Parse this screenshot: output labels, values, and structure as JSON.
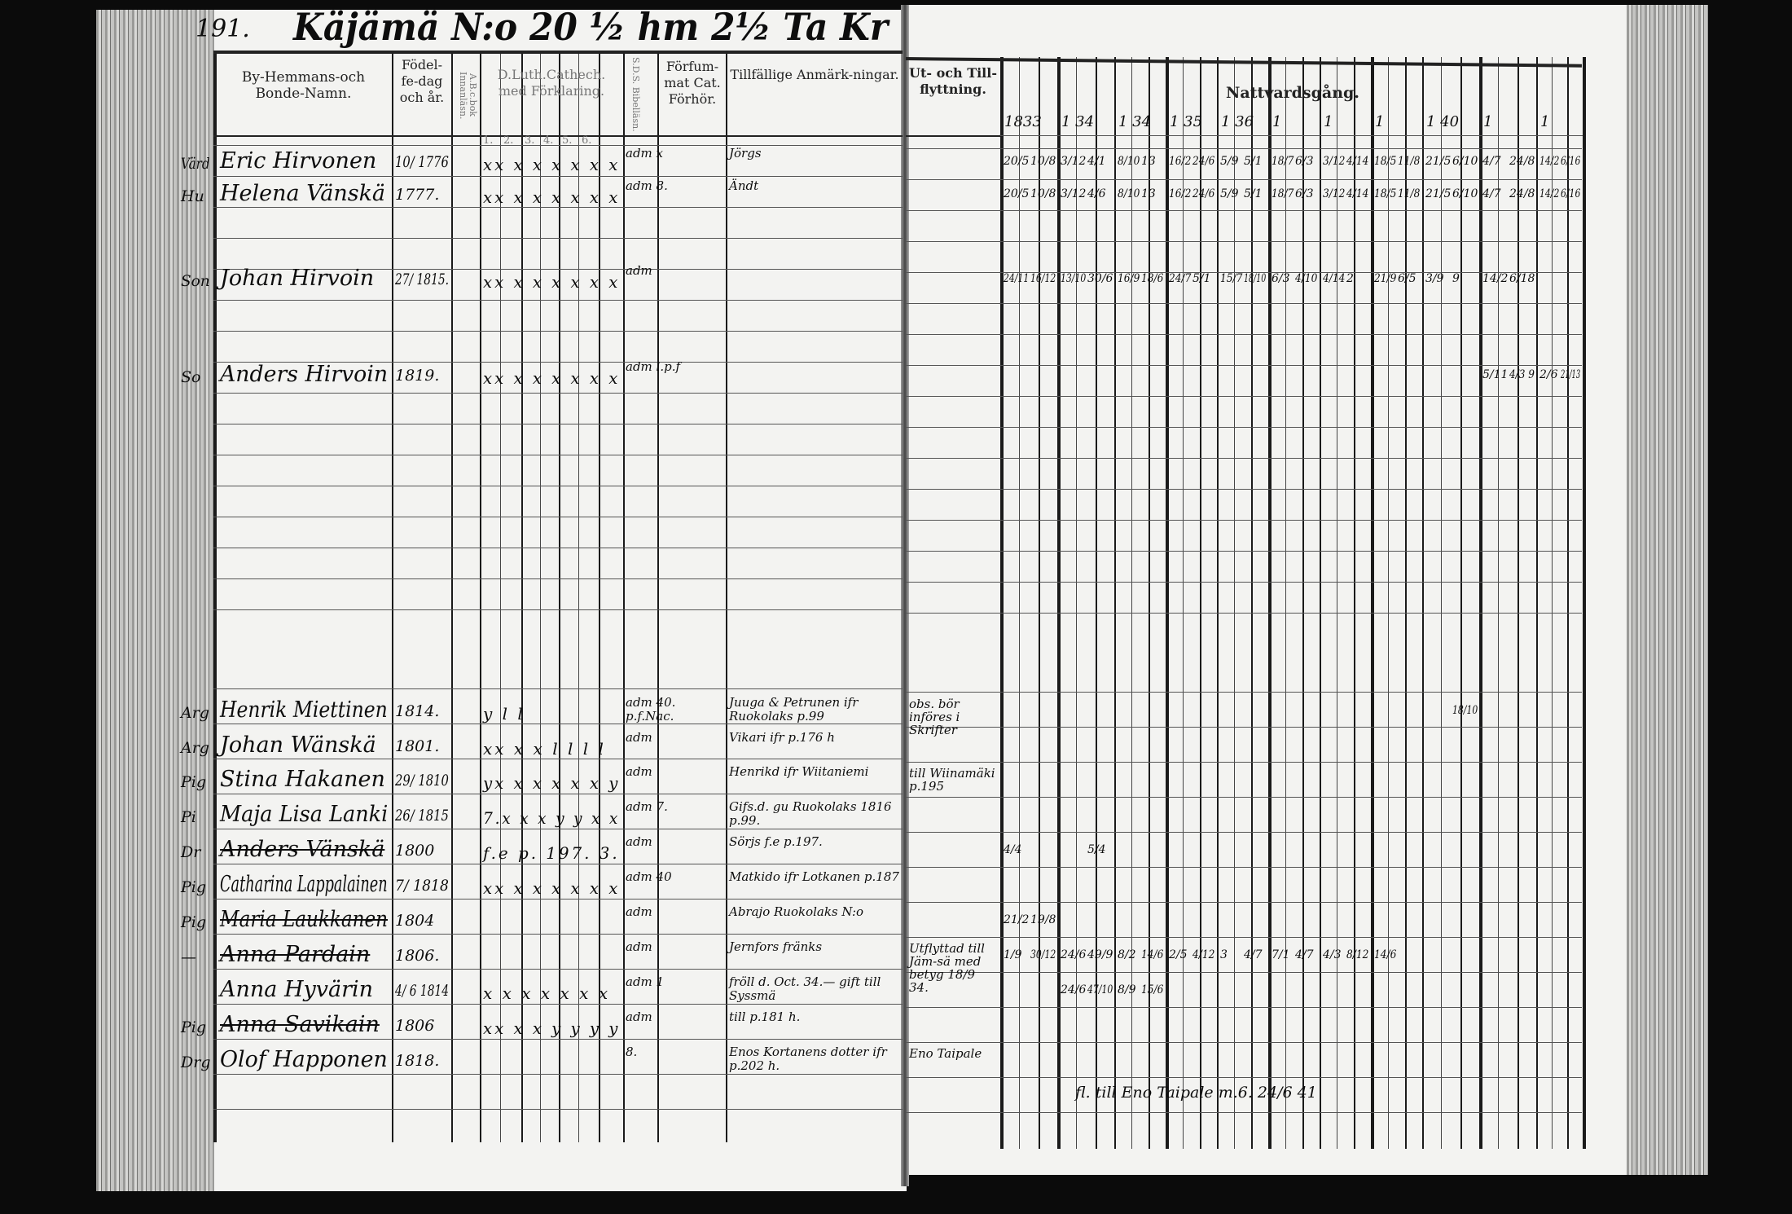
{
  "left_page": {
    "page_number": "191.",
    "title": "Käjämä N:o 20 ½ hm 2½ Ta Kr",
    "columns": {
      "name": "By-Hemmans-och Bonde-Namn.",
      "birth": "Födel-fe-dag och år.",
      "abc": "A.B.c.bok Innanläsn.",
      "catechism": "D.Luth.Cathech. med Förklaring.",
      "catechism_sub": [
        "1.",
        "2.",
        "3.",
        "4.",
        "5.",
        "6."
      ],
      "sds": "S.D.S. Bibelläsn.",
      "missed": "Förfum-mat Cat. Förhör.",
      "remarks": "Tillfällige Anmärk-ningar."
    },
    "entries": [
      {
        "role": "Värd",
        "name": "Eric Hirvonen",
        "birth": "10/ 1776",
        "marks": "xx x x x x x x",
        "sds": "adm x",
        "remarks": "Jörgs"
      },
      {
        "role": "Hu",
        "name": "Helena Vänskä",
        "birth": "1777.",
        "marks": "xx x x x x x x",
        "sds": "adm 8.",
        "remarks": "Ändt"
      },
      {
        "role": "Son",
        "name": "Johan Hirvoin",
        "birth": "27/ 1815.",
        "marks": "xx x x x x x x",
        "sds": "adm",
        "remarks": ""
      },
      {
        "role": "So",
        "name": "Anders Hirvoin",
        "birth": "1819.",
        "marks": "xx x x x x x x",
        "sds": "adm l.p.f",
        "remarks": ""
      },
      {
        "role": "Arg",
        "name": "Henrik Miettinen",
        "birth": "1814.",
        "marks": "y  l l",
        "sds": "adm 40. p.f.Nac.",
        "remarks": "Juuga & Petrunen ifr Ruokolaks p.99"
      },
      {
        "role": "Arg",
        "name": "Johan Wänskä",
        "birth": "1801.",
        "marks": "xx x x l l l l",
        "sds": "adm",
        "remarks": "Vikari ifr p.176 h"
      },
      {
        "role": "Pig",
        "name": "Stina Hakanen",
        "birth": "29/ 1810",
        "marks": "yx x x x x x y",
        "sds": "adm",
        "remarks": "Henrikd ifr Wiitaniemi"
      },
      {
        "role": "Pi",
        "name": "Maja Lisa Lanki",
        "birth": "26/ 1815",
        "marks": "7.x x x y y x x",
        "sds": "adm 7.",
        "remarks": "Gifs.d. gu Ruokolaks 1816 p.99."
      },
      {
        "role": "Dr",
        "name": "Anders Vänskä",
        "birth": "1800",
        "marks": "f.e p. 197. 3.",
        "sds": "adm",
        "remarks": "Sörjs f.e p.197.",
        "struck": true
      },
      {
        "role": "Pig",
        "name": "Catharina Lappalainen",
        "birth": "7/ 1818",
        "marks": "xx x x x x x x",
        "sds": "adm 40",
        "remarks": "Matkido ifr Lotkanen p.187"
      },
      {
        "role": "Pig",
        "name": "Maria Laukkanen",
        "birth": "1804",
        "marks": "",
        "sds": "adm",
        "remarks": "Abrajo Ruokolaks N:o",
        "struck": true
      },
      {
        "role": "—",
        "name": "Anna Pardain",
        "birth": "1806.",
        "marks": "",
        "sds": "adm",
        "remarks": "Jernfors fränks",
        "struck": true
      },
      {
        "role": "",
        "name": "Anna Hyvärin",
        "birth": "4/ 6 1814",
        "marks": "x x x x x x x",
        "sds": "adm 1",
        "remarks": "fröll d. Oct. 34.— gift till Syssmä"
      },
      {
        "role": "Pig",
        "name": "Anna Savikain",
        "birth": "1806",
        "marks": "xx x x y y y y",
        "sds": "adm",
        "remarks": "till p.181 h.",
        "struck": true
      },
      {
        "role": "Drg",
        "name": "Olof Happonen",
        "birth": "1818.",
        "marks": "",
        "sds": "8.",
        "remarks": "Enos Kortanens dotter ifr p.202 h."
      }
    ]
  },
  "right_page": {
    "columns": {
      "moving": "Ut- och Till-flyttning.",
      "communion": "Nattvardsgång."
    },
    "years": [
      "1833",
      "1 34",
      "1 34",
      "1 35",
      "1 36",
      "1",
      "1",
      "1",
      "1 40",
      "1",
      "1"
    ],
    "moving_notes": [
      {
        "row": 4,
        "text": "obs. bör införes i Skrifter"
      },
      {
        "row": 6,
        "text": "till Wiinamäki p.195"
      },
      {
        "row": 11,
        "text": "Utflyttad till Jäm-sä med betyg 18/9 34."
      },
      {
        "row": 14,
        "text": "Eno Taipale"
      }
    ],
    "footer_note": "fl. till Eno Taipale m.6. 24/6 41",
    "communion": [
      {
        "row": 0,
        "cells": [
          "20/5",
          "10/8",
          "3/12",
          "4/1",
          "8/10",
          "13",
          "16/2",
          "24/6",
          "5/9",
          "5/1",
          "18/7",
          "6/3",
          "3/12",
          "4/14",
          "18/5",
          "11/8",
          "21/5",
          "6/10",
          "4/7",
          "24/8",
          "14/2",
          "6/16"
        ]
      },
      {
        "row": 1,
        "cells": [
          "20/5",
          "10/8",
          "3/12",
          "4/6",
          "8/10",
          "13",
          "16/2",
          "24/6",
          "5/9",
          "5/1",
          "18/7",
          "6/3",
          "3/12",
          "4/14",
          "18/5",
          "11/8",
          "21/5",
          "6/10",
          "4/7",
          "24/8",
          "14/2",
          "6/16"
        ]
      },
      {
        "row": 2,
        "cells": [
          "24/11",
          "16/12",
          "13/10",
          "30/6",
          "16/9",
          "18/6",
          "24/7",
          "5/1",
          "15/7",
          "18/10",
          "6/3",
          "4/10",
          "4/14",
          "2",
          "21/9",
          "6/5",
          "3/9",
          "9",
          "14/2",
          "6/18"
        ]
      },
      {
        "row": 3,
        "cells": [
          "",
          "",
          "",
          "",
          "",
          "",
          "",
          "",
          "",
          "",
          "",
          "",
          "",
          "",
          "",
          "",
          "",
          "",
          "5/11",
          "4/3 9",
          "2/6",
          "21/13"
        ]
      },
      {
        "row": 4,
        "cells": [
          "",
          "",
          "",
          "",
          "",
          "",
          "",
          "",
          "",
          "",
          "",
          "",
          "",
          "",
          "",
          "",
          "",
          "18/10"
        ]
      },
      {
        "row": 8,
        "cells": [
          "4/4",
          "",
          "",
          "5/4"
        ]
      },
      {
        "row": 10,
        "cells": [
          "21/2",
          "19/8"
        ]
      },
      {
        "row": 11,
        "cells": [
          "1/9",
          "30/12",
          "24/6",
          "49/9",
          "8/2",
          "14/6",
          "2/5",
          "4/12",
          "3",
          "4/7",
          "7/1",
          "4/7",
          "4/3",
          "8/12",
          "14/6"
        ]
      },
      {
        "row": 12,
        "cells": [
          "",
          "",
          "24/6",
          "47/10",
          "8/9",
          "15/6"
        ]
      }
    ]
  }
}
